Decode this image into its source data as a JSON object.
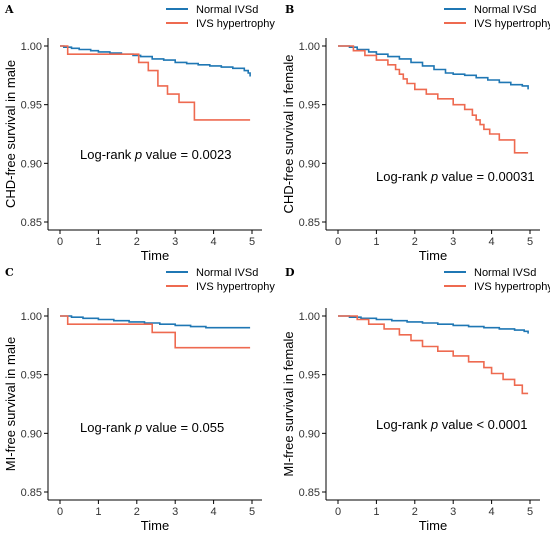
{
  "colors": {
    "normal": "#1f77b4",
    "hypertrophy": "#ee6a50"
  },
  "chart_data": [
    {
      "type": "line",
      "panel": "A",
      "xlabel": "Time",
      "ylabel": "CHD-free survival in male",
      "xlim": [
        0,
        5
      ],
      "ylim": [
        0.85,
        1.0
      ],
      "xticks": [
        "0",
        "1",
        "2",
        "3",
        "4",
        "5"
      ],
      "yticks": [
        "0.85",
        "0.90",
        "0.95",
        "1.00"
      ],
      "legend_position": "top-right",
      "annotation": {
        "prefix": "Log-rank ",
        "p": "p",
        "suffix": " value = 0.0023"
      },
      "series": [
        {
          "name": "Normal IVSd",
          "color": "#1f77b4",
          "x": [
            0,
            0.1,
            0.3,
            0.5,
            0.8,
            1.0,
            1.3,
            1.6,
            1.9,
            2.1,
            2.4,
            2.7,
            3.0,
            3.3,
            3.6,
            3.9,
            4.2,
            4.5,
            4.8,
            4.9,
            4.95
          ],
          "y": [
            1.0,
            0.999,
            0.998,
            0.997,
            0.996,
            0.995,
            0.994,
            0.993,
            0.992,
            0.991,
            0.989,
            0.988,
            0.986,
            0.985,
            0.984,
            0.983,
            0.982,
            0.981,
            0.979,
            0.977,
            0.974
          ]
        },
        {
          "name": "IVS hypertrophy",
          "color": "#ee6a50",
          "x": [
            0,
            0.2,
            1.9,
            2.05,
            2.3,
            2.55,
            2.8,
            3.1,
            3.5,
            4.95
          ],
          "y": [
            1.0,
            0.993,
            0.993,
            0.986,
            0.979,
            0.966,
            0.959,
            0.952,
            0.937,
            0.937
          ]
        }
      ]
    },
    {
      "type": "line",
      "panel": "B",
      "xlabel": "Time",
      "ylabel": "CHD-free survival in female",
      "xlim": [
        0,
        5
      ],
      "ylim": [
        0.85,
        1.0
      ],
      "xticks": [
        "0",
        "1",
        "2",
        "3",
        "4",
        "5"
      ],
      "yticks": [
        "0.85",
        "0.90",
        "0.95",
        "1.00"
      ],
      "legend_position": "top-right",
      "annotation": {
        "prefix": "Log-rank ",
        "p": "p",
        "suffix": " value = 0.00031"
      },
      "series": [
        {
          "name": "Normal IVSd",
          "color": "#1f77b4",
          "x": [
            0,
            0.3,
            0.5,
            0.8,
            1.0,
            1.3,
            1.6,
            1.9,
            2.2,
            2.5,
            2.8,
            3.0,
            3.3,
            3.6,
            3.9,
            4.2,
            4.5,
            4.8,
            4.95
          ],
          "y": [
            1.0,
            0.999,
            0.997,
            0.995,
            0.993,
            0.991,
            0.989,
            0.986,
            0.983,
            0.98,
            0.977,
            0.976,
            0.975,
            0.973,
            0.971,
            0.969,
            0.967,
            0.966,
            0.963
          ]
        },
        {
          "name": "IVS hypertrophy",
          "color": "#ee6a50",
          "x": [
            0,
            0.4,
            0.7,
            1.0,
            1.3,
            1.5,
            1.6,
            1.7,
            1.8,
            2.0,
            2.3,
            2.6,
            3.0,
            3.3,
            3.5,
            3.6,
            3.7,
            3.8,
            3.95,
            4.2,
            4.6,
            4.95
          ],
          "y": [
            1.0,
            0.996,
            0.992,
            0.988,
            0.984,
            0.98,
            0.976,
            0.972,
            0.968,
            0.963,
            0.959,
            0.955,
            0.95,
            0.946,
            0.941,
            0.937,
            0.933,
            0.929,
            0.925,
            0.92,
            0.909,
            0.909
          ]
        }
      ]
    },
    {
      "type": "line",
      "panel": "C",
      "xlabel": "Time",
      "ylabel": "MI-free survival in male",
      "xlim": [
        0,
        5
      ],
      "ylim": [
        0.85,
        1.0
      ],
      "xticks": [
        "0",
        "1",
        "2",
        "3",
        "4",
        "5"
      ],
      "yticks": [
        "0.85",
        "0.90",
        "0.95",
        "1.00"
      ],
      "legend_position": "top-right",
      "annotation": {
        "prefix": "Log-rank ",
        "p": "p",
        "suffix": " value = 0.055"
      },
      "series": [
        {
          "name": "Normal IVSd",
          "color": "#1f77b4",
          "x": [
            0,
            0.3,
            0.6,
            1.0,
            1.4,
            1.8,
            2.2,
            2.6,
            3.0,
            3.4,
            3.8,
            4.2,
            4.6,
            4.95
          ],
          "y": [
            1.0,
            0.999,
            0.998,
            0.997,
            0.996,
            0.995,
            0.994,
            0.993,
            0.992,
            0.991,
            0.99,
            0.99,
            0.99,
            0.99
          ]
        },
        {
          "name": "IVS hypertrophy",
          "color": "#ee6a50",
          "x": [
            0,
            0.2,
            2.1,
            2.4,
            3.0,
            4.95
          ],
          "y": [
            1.0,
            0.993,
            0.993,
            0.986,
            0.973,
            0.973
          ]
        }
      ]
    },
    {
      "type": "line",
      "panel": "D",
      "xlabel": "Time",
      "ylabel": "MI-free survival in female",
      "xlim": [
        0,
        5
      ],
      "ylim": [
        0.85,
        1.0
      ],
      "xticks": [
        "0",
        "1",
        "2",
        "3",
        "4",
        "5"
      ],
      "yticks": [
        "0.85",
        "0.90",
        "0.95",
        "1.00"
      ],
      "legend_position": "top-right",
      "annotation": {
        "prefix": "Log-rank ",
        "p": "p",
        "suffix": " value < 0.0001"
      },
      "series": [
        {
          "name": "Normal IVSd",
          "color": "#1f77b4",
          "x": [
            0,
            0.3,
            0.6,
            1.0,
            1.4,
            1.8,
            2.2,
            2.6,
            3.0,
            3.4,
            3.8,
            4.2,
            4.6,
            4.85,
            4.95
          ],
          "y": [
            1.0,
            0.999,
            0.998,
            0.997,
            0.996,
            0.995,
            0.994,
            0.993,
            0.992,
            0.991,
            0.99,
            0.989,
            0.988,
            0.987,
            0.985
          ]
        },
        {
          "name": "IVS hypertrophy",
          "color": "#ee6a50",
          "x": [
            0,
            0.5,
            0.8,
            1.2,
            1.6,
            1.9,
            2.2,
            2.6,
            3.0,
            3.4,
            3.8,
            4.0,
            4.3,
            4.6,
            4.8,
            4.95
          ],
          "y": [
            1.0,
            0.997,
            0.993,
            0.989,
            0.984,
            0.979,
            0.974,
            0.97,
            0.966,
            0.961,
            0.956,
            0.951,
            0.946,
            0.941,
            0.934,
            0.934
          ]
        }
      ]
    }
  ]
}
